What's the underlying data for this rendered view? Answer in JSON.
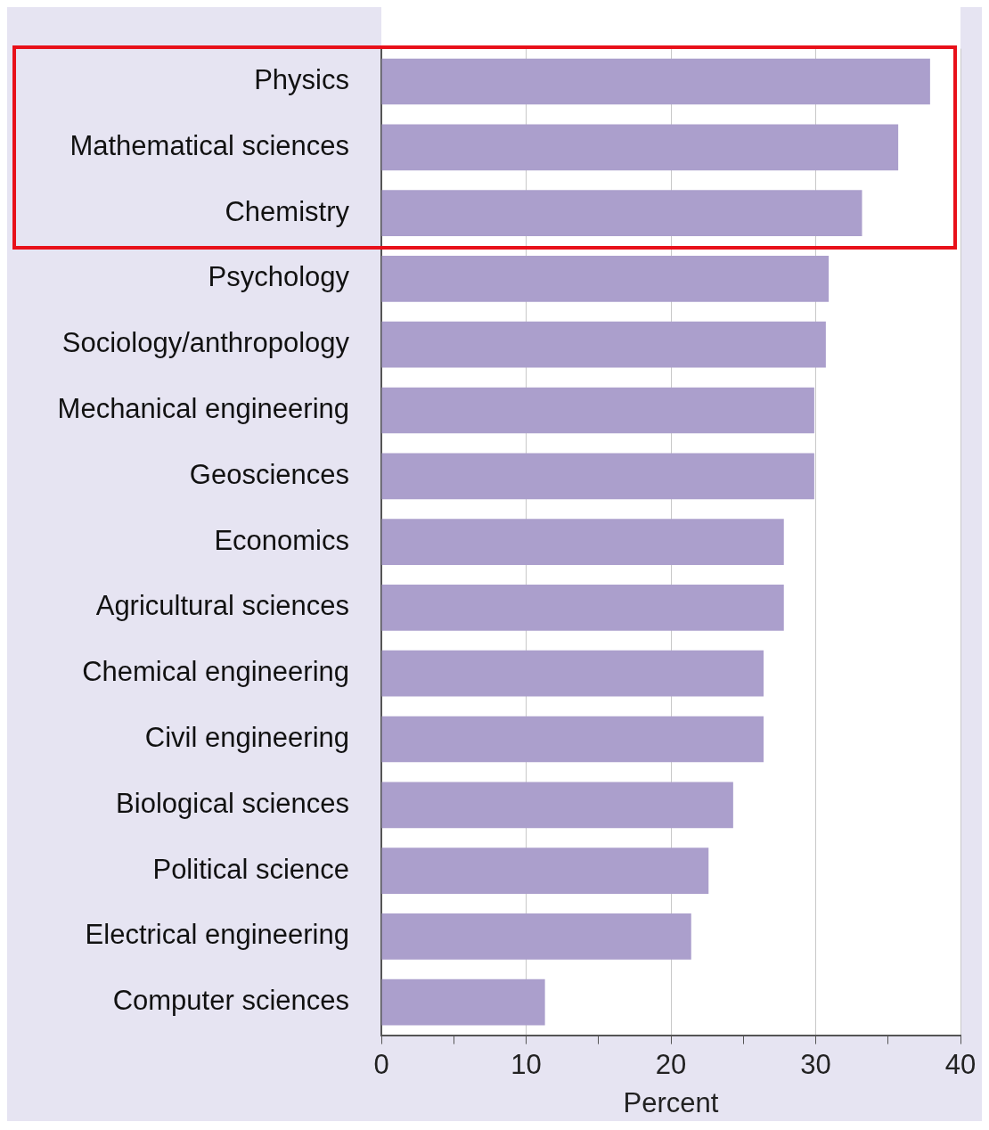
{
  "chart_data": {
    "type": "bar",
    "orientation": "horizontal",
    "xlabel": "Percent",
    "categories": [
      "Physics",
      "Mathematical sciences",
      "Chemistry",
      "Psychology",
      "Sociology/anthropology",
      "Mechanical engineering",
      "Geosciences",
      "Economics",
      "Agricultural sciences",
      "Chemical engineering",
      "Civil engineering",
      "Biological sciences",
      "Political science",
      "Electrical engineering",
      "Computer sciences"
    ],
    "values": [
      37.9,
      35.7,
      33.2,
      30.9,
      30.7,
      29.9,
      29.9,
      27.8,
      27.8,
      26.4,
      26.4,
      24.3,
      22.6,
      21.4,
      11.3
    ],
    "color": "#ab9fcc",
    "xlim": [
      0,
      40
    ],
    "xticks": [
      0,
      {
        "value": 5,
        "label": null
      },
      10,
      {
        "value": 15,
        "label": null
      },
      20,
      {
        "value": 25,
        "label": null
      },
      30,
      {
        "value": 35,
        "label": null
      },
      40
    ],
    "grid": "x",
    "legend": false
  }
}
